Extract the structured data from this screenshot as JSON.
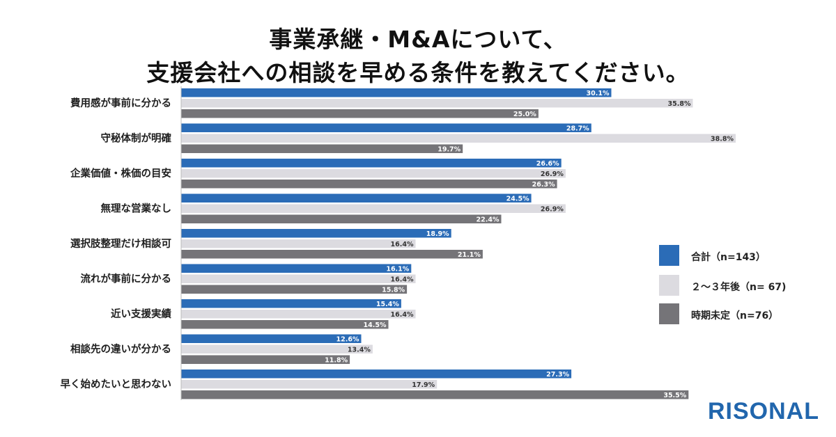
{
  "title_line1": "事業承継・M&Aについて、",
  "title_line2": "支援会社への相談を早める条件を教えてください。",
  "brand": "RISONAL",
  "chart_data": {
    "type": "bar",
    "orientation": "horizontal",
    "categories": [
      "費用感が事前に分かる",
      "守秘体制が明確",
      "企業価値・株価の目安",
      "無理な営業なし",
      "選択肢整理だけ相談可",
      "流れが事前に分かる",
      "近い支援実績",
      "相談先の違いが分かる",
      "早く始めたいと思わない"
    ],
    "series": [
      {
        "name": "合計（n=143）",
        "color": "#2b6cb7",
        "label_color": "#ffffff",
        "values": [
          30.1,
          28.7,
          26.6,
          24.5,
          18.9,
          16.1,
          15.4,
          12.6,
          27.3
        ],
        "labels": [
          "30.1%",
          "28.7%",
          "26.6%",
          "24.5%",
          "18.9%",
          "16.1%",
          "15.4%",
          "12.6%",
          "27.3%"
        ]
      },
      {
        "name": "２～３年後（n= 67)",
        "color": "#dcdbe0",
        "label_color": "#333333",
        "values": [
          35.8,
          38.8,
          26.9,
          26.9,
          16.4,
          16.4,
          16.4,
          13.4,
          17.9
        ],
        "labels": [
          "35.8%",
          "38.8%",
          "26.9%",
          "26.9%",
          "16.4%",
          "16.4%",
          "16.4%",
          "13.4%",
          "17.9%"
        ]
      },
      {
        "name": "時期未定（n=76）",
        "color": "#757478",
        "label_color": "#ffffff",
        "values": [
          25.0,
          19.7,
          26.3,
          22.4,
          21.1,
          15.8,
          14.5,
          11.8,
          35.5
        ],
        "labels": [
          "25.0%",
          "19.7%",
          "26.3%",
          "22.4%",
          "21.1%",
          "15.8%",
          "14.5%",
          "11.8%",
          "35.5%"
        ]
      }
    ],
    "xlim": [
      0,
      40
    ],
    "legend_position": "right",
    "grid": false
  }
}
